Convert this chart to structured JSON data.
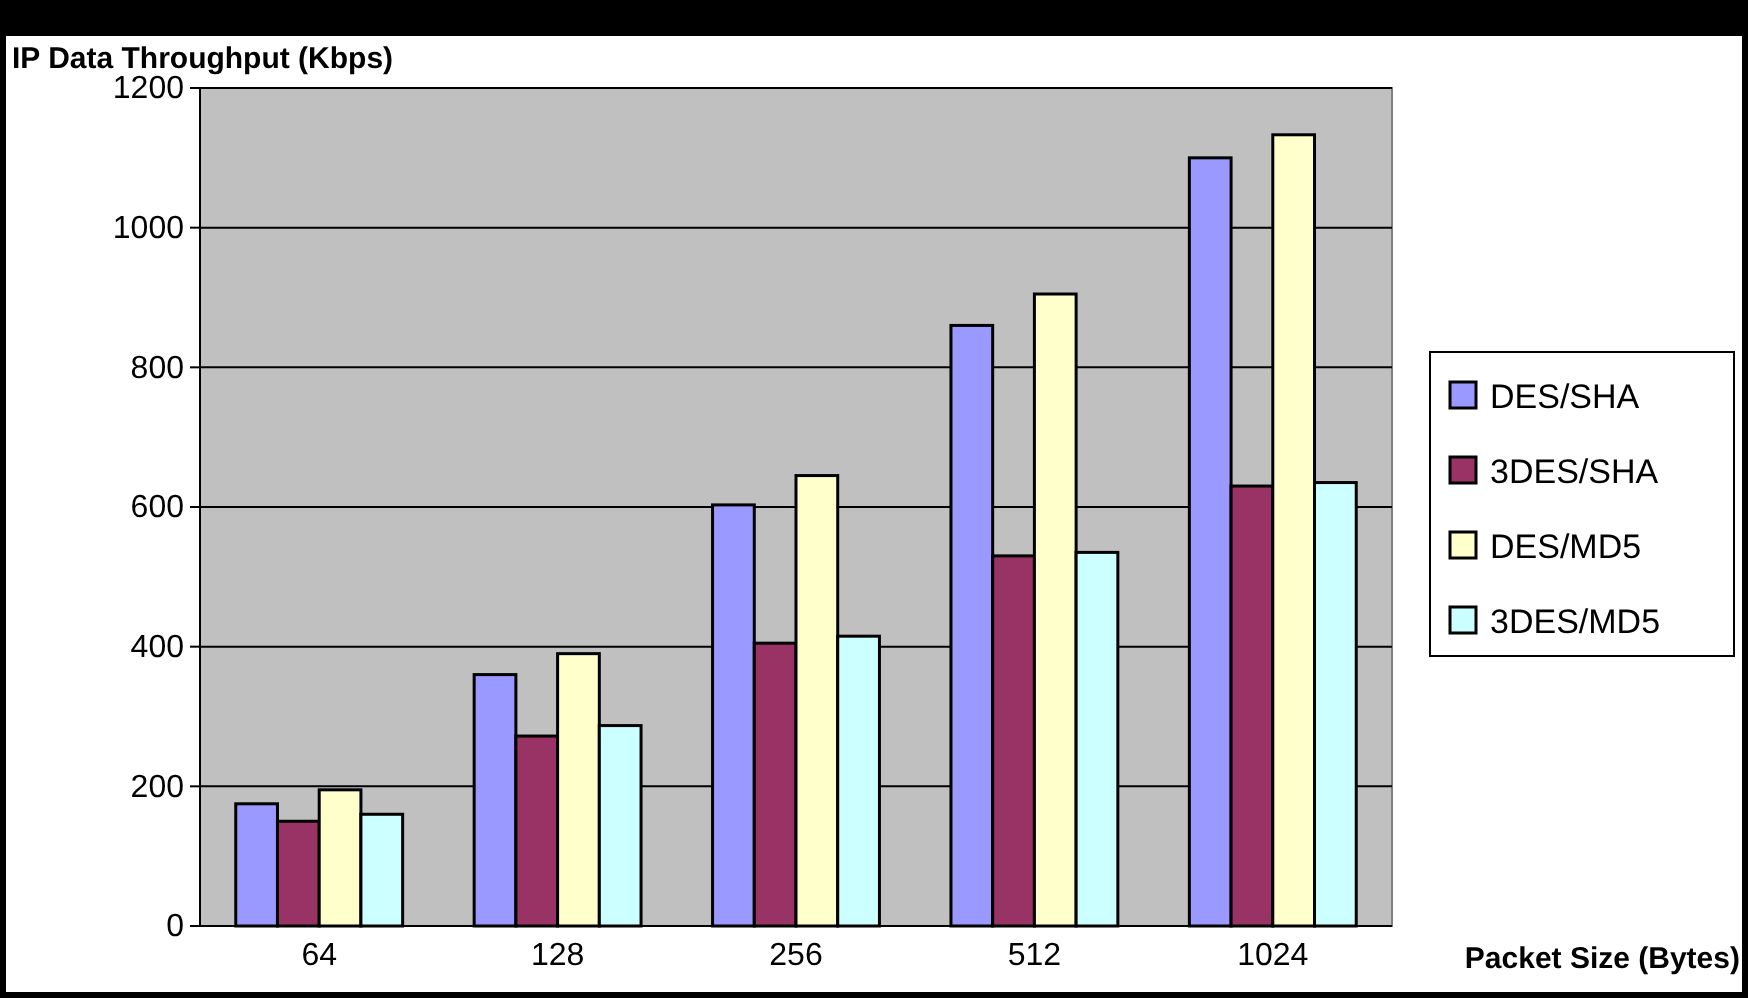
{
  "chart_data": {
    "type": "bar",
    "ylabel": "IP Data Throughput (Kbps)",
    "xlabel": "Packet Size (Bytes)",
    "categories": [
      "64",
      "128",
      "256",
      "512",
      "1024"
    ],
    "series": [
      {
        "name": "DES/SHA",
        "color": "#9999ff",
        "values": [
          175,
          360,
          603,
          860,
          1100
        ]
      },
      {
        "name": "3DES/SHA",
        "color": "#993366",
        "values": [
          150,
          272,
          405,
          530,
          630
        ]
      },
      {
        "name": "DES/MD5",
        "color": "#ffffcc",
        "values": [
          195,
          390,
          645,
          905,
          1133
        ]
      },
      {
        "name": "3DES/MD5",
        "color": "#ccffff",
        "values": [
          160,
          287,
          415,
          535,
          635
        ]
      }
    ],
    "ylim": [
      0,
      1200
    ],
    "yticks": [
      0,
      200,
      400,
      600,
      800,
      1000,
      1200
    ],
    "grid": "y",
    "legend": "right"
  }
}
